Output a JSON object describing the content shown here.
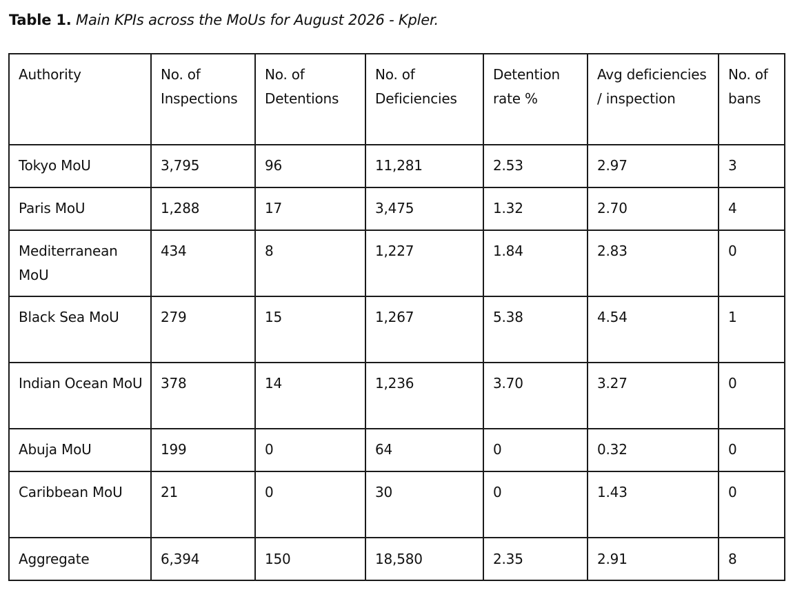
{
  "caption": {
    "label": "Table 1.",
    "text": "Main KPIs across the MoUs for August 2026 - Kpler."
  },
  "table": {
    "headers": [
      "Authority",
      "No. of Inspections",
      "No. of Detentions",
      "No. of Deficiencies",
      "Detention rate %",
      "Avg deficiencies / inspection",
      "No. of bans"
    ],
    "rows": [
      [
        "Tokyo MoU",
        "3,795",
        "96",
        "11,281",
        "2.53",
        "2.97",
        "3"
      ],
      [
        "Paris MoU",
        "1,288",
        "17",
        "3,475",
        "1.32",
        "2.70",
        "4"
      ],
      [
        "Mediterranean MoU",
        "434",
        "8",
        "1,227",
        "1.84",
        "2.83",
        "0"
      ],
      [
        "Black Sea MoU",
        "279",
        "15",
        "1,267",
        "5.38",
        "4.54",
        "1"
      ],
      [
        "Indian Ocean MoU",
        "378",
        "14",
        "1,236",
        "3.70",
        "3.27",
        "0"
      ],
      [
        "Abuja MoU",
        "199",
        "0",
        "64",
        "0",
        "0.32",
        "0"
      ],
      [
        "Caribbean MoU",
        "21",
        "0",
        "30",
        "0",
        "1.43",
        "0"
      ],
      [
        "Aggregate",
        "6,394",
        "150",
        "18,580",
        "2.35",
        "2.91",
        "8"
      ]
    ]
  }
}
